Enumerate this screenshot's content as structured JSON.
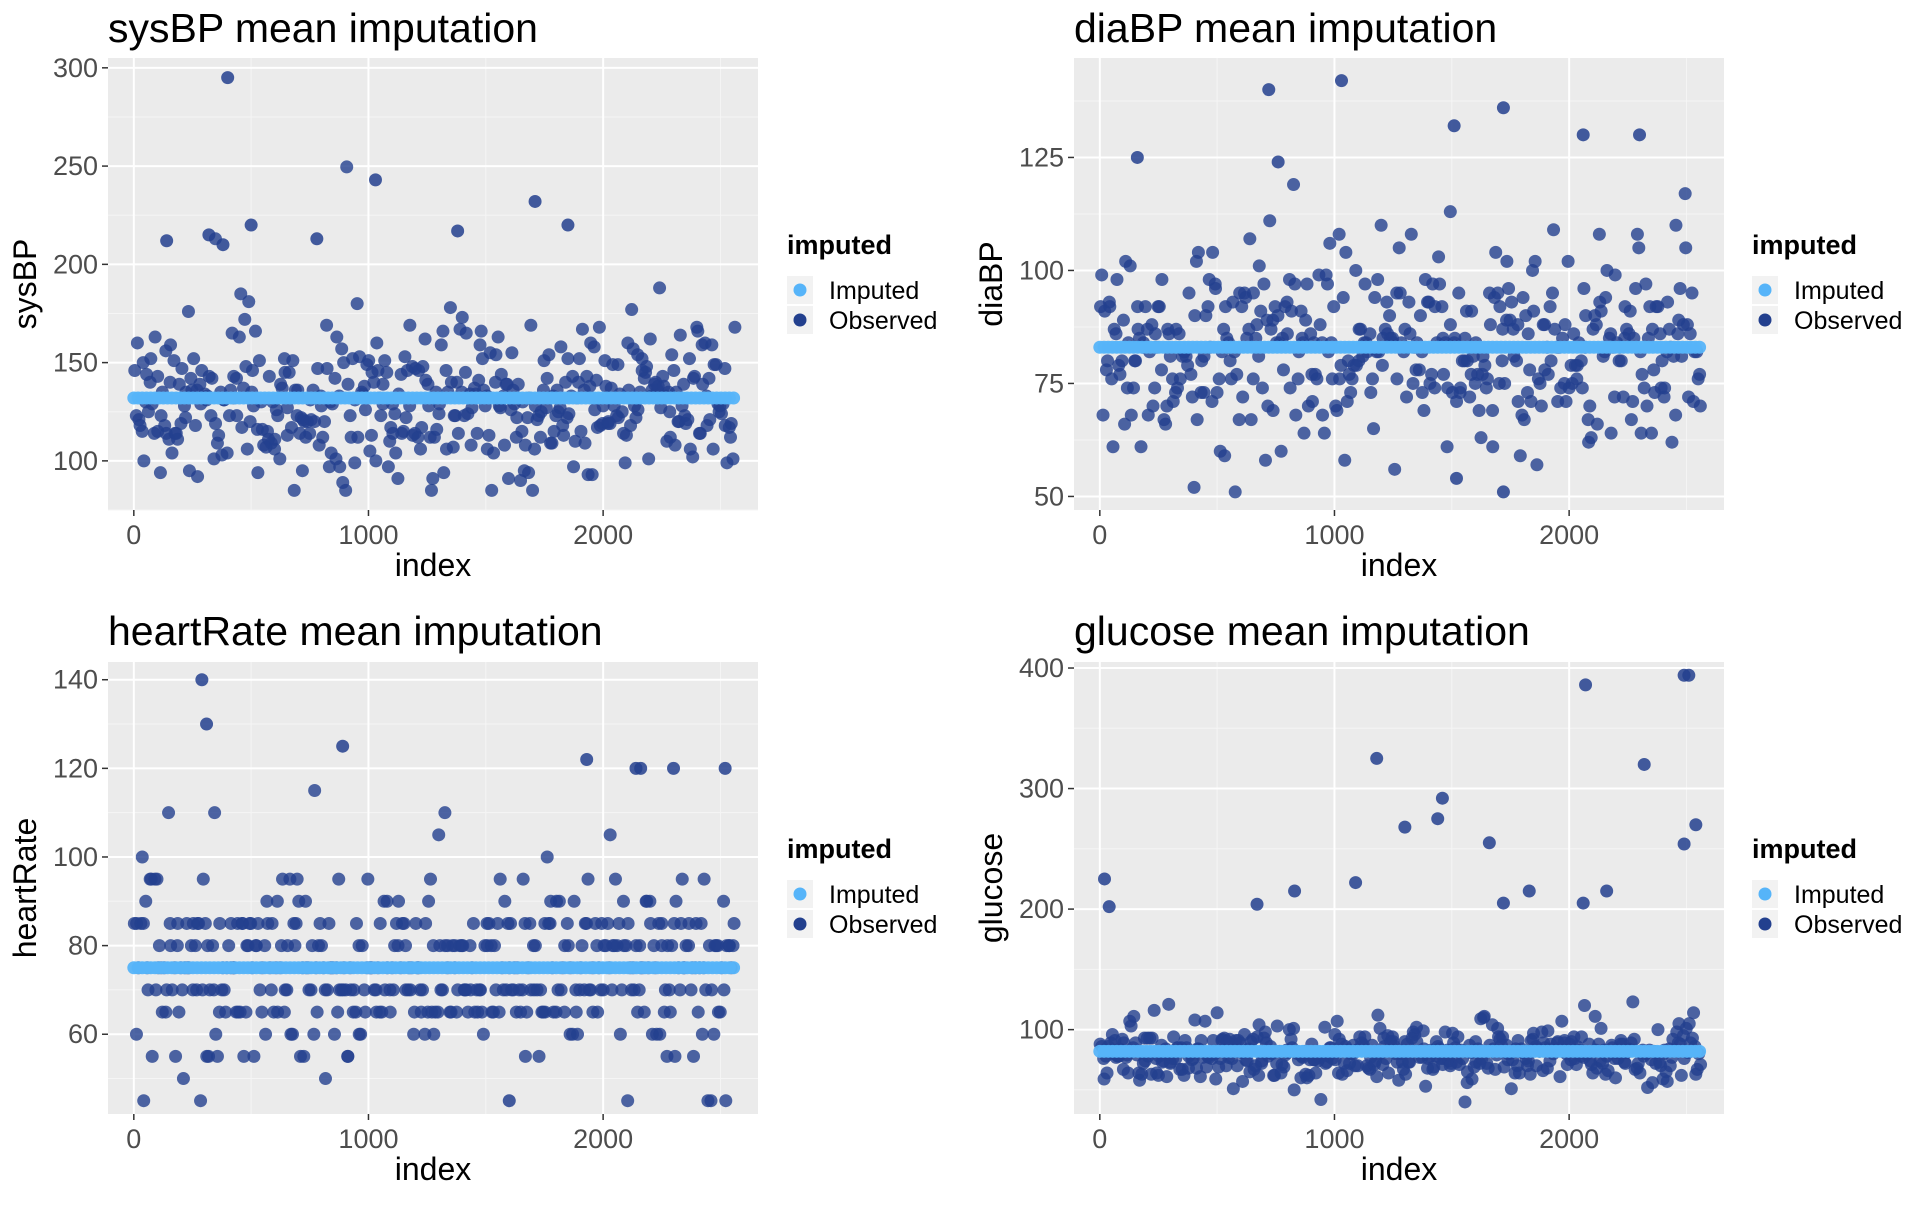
{
  "figure": {
    "legend_title": "imputed",
    "legend_items": [
      {
        "label": "Imputed",
        "color": "#56B4F9"
      },
      {
        "label": "Observed",
        "color": "#23408E"
      }
    ]
  },
  "chart_data": [
    {
      "type": "scatter",
      "title": "sysBP mean imputation",
      "xlabel": "index",
      "ylabel": "sysBP",
      "xlim": [
        -110,
        2660
      ],
      "ylim": [
        75,
        305
      ],
      "xticks": [
        0,
        1000,
        2000
      ],
      "yticks": [
        100,
        150,
        200,
        250,
        300
      ],
      "grid": true,
      "legend": "right",
      "n_points": 2560,
      "imputed_value": 132,
      "observed_range": [
        85,
        296
      ],
      "outliers": [
        [
          400,
          295
        ],
        [
          1030,
          243
        ],
        [
          1710,
          232
        ],
        [
          500,
          220
        ],
        [
          1850,
          220
        ],
        [
          1380,
          217
        ],
        [
          320,
          215
        ],
        [
          780,
          213
        ],
        [
          140,
          212
        ],
        [
          380,
          210
        ]
      ]
    },
    {
      "type": "scatter",
      "title": "diaBP mean imputation",
      "xlabel": "index",
      "ylabel": "diaBP",
      "xlim": [
        -110,
        2660
      ],
      "ylim": [
        47,
        147
      ],
      "xticks": [
        0,
        1000,
        2000
      ],
      "yticks": [
        50,
        75,
        100,
        125
      ],
      "grid": true,
      "legend": "right",
      "n_points": 2560,
      "imputed_value": 83,
      "observed_range": [
        51,
        142
      ],
      "outliers": [
        [
          1030,
          142
        ],
        [
          720,
          140
        ],
        [
          1720,
          136
        ],
        [
          1510,
          132
        ],
        [
          2060,
          130
        ],
        [
          2300,
          130
        ],
        [
          160,
          125
        ],
        [
          760,
          124
        ],
        [
          1720,
          51
        ],
        [
          1520,
          54
        ]
      ]
    },
    {
      "type": "scatter",
      "title": "heartRate mean imputation",
      "xlabel": "index",
      "ylabel": "heartRate",
      "xlim": [
        -110,
        2660
      ],
      "ylim": [
        42,
        144
      ],
      "xticks": [
        0,
        1000,
        2000
      ],
      "yticks": [
        60,
        80,
        100,
        120,
        140
      ],
      "grid": true,
      "legend": "right",
      "n_points": 2560,
      "imputed_value": 75,
      "observed_range": [
        45,
        140
      ],
      "outliers": [
        [
          290,
          140
        ],
        [
          310,
          130
        ],
        [
          890,
          125
        ],
        [
          1930,
          122
        ],
        [
          2140,
          120
        ],
        [
          2160,
          120
        ],
        [
          2300,
          120
        ],
        [
          2520,
          120
        ],
        [
          1600,
          45
        ]
      ]
    },
    {
      "type": "scatter",
      "title": "glucose mean imputation",
      "xlabel": "index",
      "ylabel": "glucose",
      "xlim": [
        -110,
        2660
      ],
      "ylim": [
        30,
        405
      ],
      "xticks": [
        0,
        1000,
        2000
      ],
      "yticks": [
        100,
        200,
        300,
        400
      ],
      "grid": true,
      "legend": "right",
      "n_points": 2560,
      "imputed_value": 82,
      "observed_range": [
        40,
        394
      ],
      "outliers": [
        [
          2490,
          394
        ],
        [
          2510,
          394
        ],
        [
          2070,
          386
        ],
        [
          1180,
          325
        ],
        [
          2320,
          320
        ],
        [
          1460,
          292
        ],
        [
          1440,
          275
        ],
        [
          2540,
          270
        ],
        [
          1300,
          268
        ],
        [
          1660,
          255
        ],
        [
          2490,
          254
        ],
        [
          20,
          225
        ],
        [
          1090,
          222
        ],
        [
          1830,
          215
        ],
        [
          2160,
          215
        ],
        [
          40,
          202
        ],
        [
          830,
          215
        ],
        [
          2060,
          205
        ],
        [
          1720,
          205
        ],
        [
          670,
          204
        ]
      ]
    }
  ]
}
